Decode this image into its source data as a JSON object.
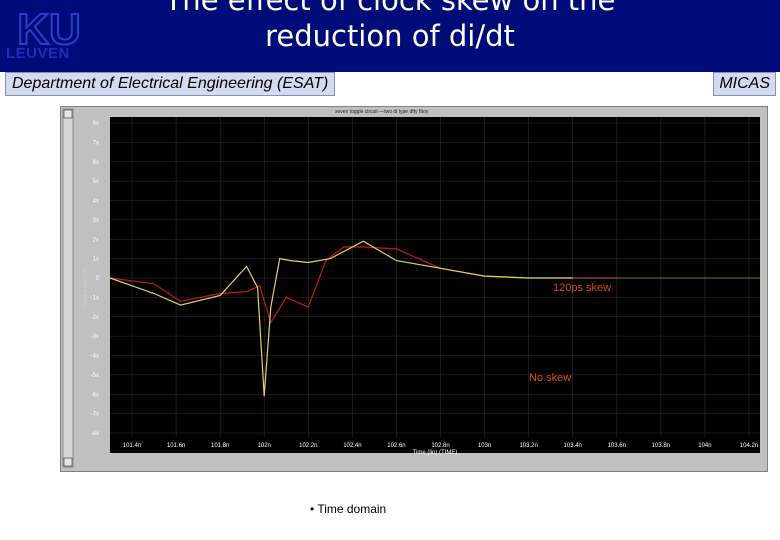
{
  "header": {
    "logo_top": "KU",
    "logo_name": "LEUVEN",
    "title_line1": "The effect of clock skew on the",
    "title_line2": "reduction of di/dt"
  },
  "subheader": {
    "department": "Department of Electrical Engineering (ESAT)",
    "group": "MICAS"
  },
  "scope": {
    "legend": "seven toggle circuit  —two di type dfty fboy",
    "ylabel": "Output 2em (B)",
    "xlabel": "Time (lin) (TIME)",
    "yticks": [
      "8x",
      "7x",
      "6x",
      "5x",
      "4x",
      "3x",
      "2x",
      "1x",
      "0",
      "-1x",
      "-2x",
      "-3x",
      "-4x",
      "-5x",
      "-6x",
      "-7x",
      "-8x"
    ],
    "xticks": [
      "101.4n",
      "101.6n",
      "101.8n",
      "102n",
      "102.2n",
      "102.4n",
      "102.6n",
      "102.8n",
      "103n",
      "103.2n",
      "103.4n",
      "103.6n",
      "103.8n",
      "104n",
      "104.2n"
    ],
    "annotation_skew": "120ps skew",
    "annotation_noskew": "No skew",
    "colors": {
      "skew": "#c41818",
      "noskew": "#d8d85a",
      "annotation": "#d84a14",
      "plot_bg": "#000000"
    }
  },
  "chart_data": {
    "type": "line",
    "xlabel": "Time (lin) (TIME)",
    "ylabel": "Output 2em (B)",
    "xlim": [
      101.3,
      104.25
    ],
    "ylim": [
      -8,
      8
    ],
    "series": [
      {
        "name": "120ps skew",
        "x": [
          101.3,
          101.5,
          101.62,
          101.8,
          101.92,
          101.98,
          102.03,
          102.1,
          102.2,
          102.28,
          102.36,
          102.45,
          102.6,
          102.8,
          103.0,
          103.2,
          103.4,
          103.6
        ],
        "y": [
          0,
          -0.3,
          -1.2,
          -0.8,
          -0.7,
          -0.4,
          -2.3,
          -1.0,
          -1.5,
          0.9,
          1.6,
          1.6,
          1.5,
          0.5,
          0.1,
          0,
          0,
          0
        ]
      },
      {
        "name": "No skew",
        "x": [
          101.3,
          101.5,
          101.62,
          101.8,
          101.92,
          101.97,
          102.0,
          102.03,
          102.07,
          102.12,
          102.2,
          102.3,
          102.45,
          102.6,
          102.8,
          103.0,
          103.2,
          103.4
        ],
        "y": [
          0,
          -0.8,
          -1.4,
          -0.9,
          0.6,
          -0.5,
          -6.1,
          -1.5,
          1.0,
          0.9,
          0.8,
          1.0,
          1.9,
          0.9,
          0.5,
          0.1,
          0,
          0
        ]
      }
    ]
  },
  "bullet": "• Time domain"
}
